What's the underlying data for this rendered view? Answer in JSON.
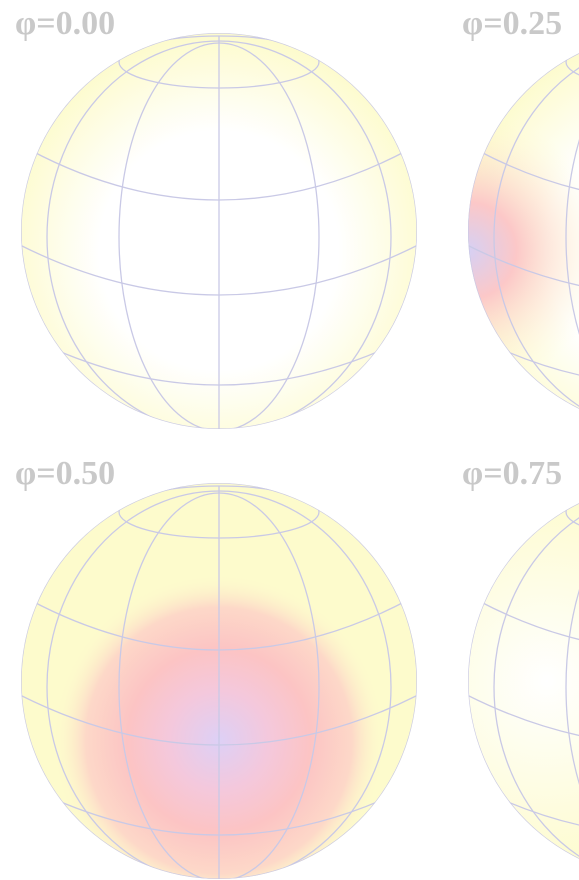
{
  "panels": [
    {
      "label": "φ=0.00"
    },
    {
      "label": "φ=0.25"
    },
    {
      "label": "φ=0.50"
    },
    {
      "label": "φ=0.75"
    }
  ]
}
